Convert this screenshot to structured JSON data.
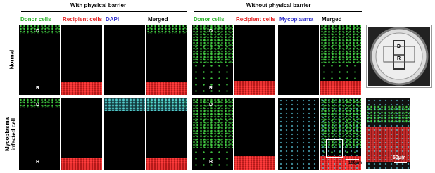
{
  "groups": [
    {
      "title": "With physical barrier",
      "columns": [
        "Donor cells",
        "Recipient cells",
        "DAPI",
        "Merged"
      ]
    },
    {
      "title": "Without physical barrier",
      "columns": [
        "Donor cells",
        "Recipient cells",
        "Mycoplasma",
        "Merged"
      ]
    }
  ],
  "rows": [
    "Normal",
    "Mycoplasma infected cell"
  ],
  "panel_labels": {
    "donor": "D",
    "recipient": "R"
  },
  "scale_bars": [
    "100μm",
    "50μm"
  ]
}
